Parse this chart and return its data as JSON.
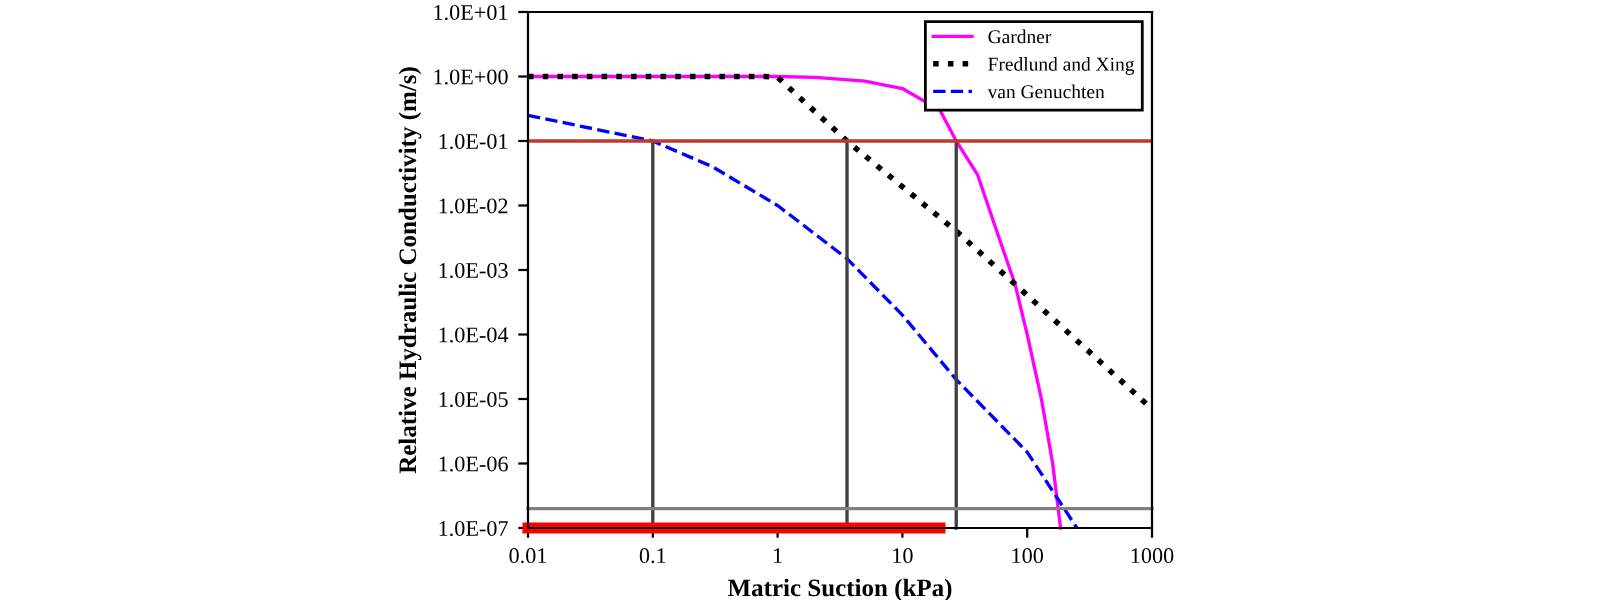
{
  "chart_data": {
    "type": "line",
    "xlabel": "Matric Suction (kPa)",
    "ylabel": "Relative Hydraulic Conductivity (m/s)",
    "log": "xy",
    "grid": false,
    "legend": "top right",
    "xlim": [
      0.01,
      1000
    ],
    "xticks": [
      0.01,
      0.1,
      1,
      10,
      100,
      1000
    ],
    "ylim": [
      1e-07,
      10
    ],
    "yticks": [
      {
        "value": 1e-07,
        "label": "1.0E-07"
      },
      {
        "value": 1e-06,
        "label": "1.0E-06"
      },
      {
        "value": 1e-05,
        "label": "1.0E-05"
      },
      {
        "value": 0.0001,
        "label": "1.0E-04"
      },
      {
        "value": 0.001,
        "label": "1.0E-03"
      },
      {
        "value": 0.01,
        "label": "1.0E-02"
      },
      {
        "value": 0.1,
        "label": "1.0E-01"
      },
      {
        "value": 1,
        "label": "1.0E+00"
      },
      {
        "value": 10,
        "label": "1.0E+01"
      }
    ],
    "series": [
      {
        "name": "Gardner",
        "color": "#ff00ff",
        "line_style": "solid",
        "x": [
          0.01,
          0.1,
          1,
          2,
          5,
          10,
          20,
          27,
          40,
          60,
          80,
          100,
          130,
          160,
          185
        ],
        "values": [
          1,
          1,
          1,
          0.97,
          0.85,
          0.65,
          0.3,
          0.1,
          0.03,
          0.003,
          0.0006,
          0.0001,
          1e-05,
          1e-06,
          1e-07
        ]
      },
      {
        "name": "Fredlund and Xing",
        "color": "#000000",
        "line_style": "dotted",
        "x": [
          0.01,
          0.8,
          1,
          3.6,
          27,
          80,
          1000
        ],
        "values": [
          1,
          1,
          0.97,
          0.1,
          0.004,
          0.0006,
          7e-06
        ]
      },
      {
        "name": "van Genuchten",
        "color": "#0000ff",
        "line_style": "dashed",
        "x": [
          0.01,
          0.1,
          0.3,
          1,
          3.6,
          10,
          27,
          100,
          250
        ],
        "values": [
          0.25,
          0.1,
          0.04,
          0.01,
          0.0015,
          0.0002,
          2e-05,
          1.5e-06,
          1e-07
        ]
      },
      {
        "color": "#404040",
        "line_style": "solid",
        "x": [
          0.1,
          0.1
        ],
        "values": [
          0.1,
          1e-07
        ]
      },
      {
        "color": "#404040",
        "line_style": "solid",
        "x": [
          3.6,
          3.6
        ],
        "values": [
          0.1,
          1e-07
        ]
      },
      {
        "color": "#404040",
        "line_style": "solid",
        "x": [
          27,
          27
        ],
        "values": [
          0.1,
          1e-07
        ]
      },
      {
        "color": "#ff0000",
        "line_style": "solid",
        "x": [
          0.01,
          20
        ],
        "values": [
          1e-07,
          1e-07
        ]
      },
      {
        "color": "#808080",
        "line_style": "solid",
        "x": [
          0.01,
          1000
        ],
        "values": [
          2e-07,
          2e-07
        ]
      }
    ],
    "ref_lines": [
      {
        "axis": "y",
        "value": 0.1,
        "color": "#c0392b"
      }
    ]
  }
}
